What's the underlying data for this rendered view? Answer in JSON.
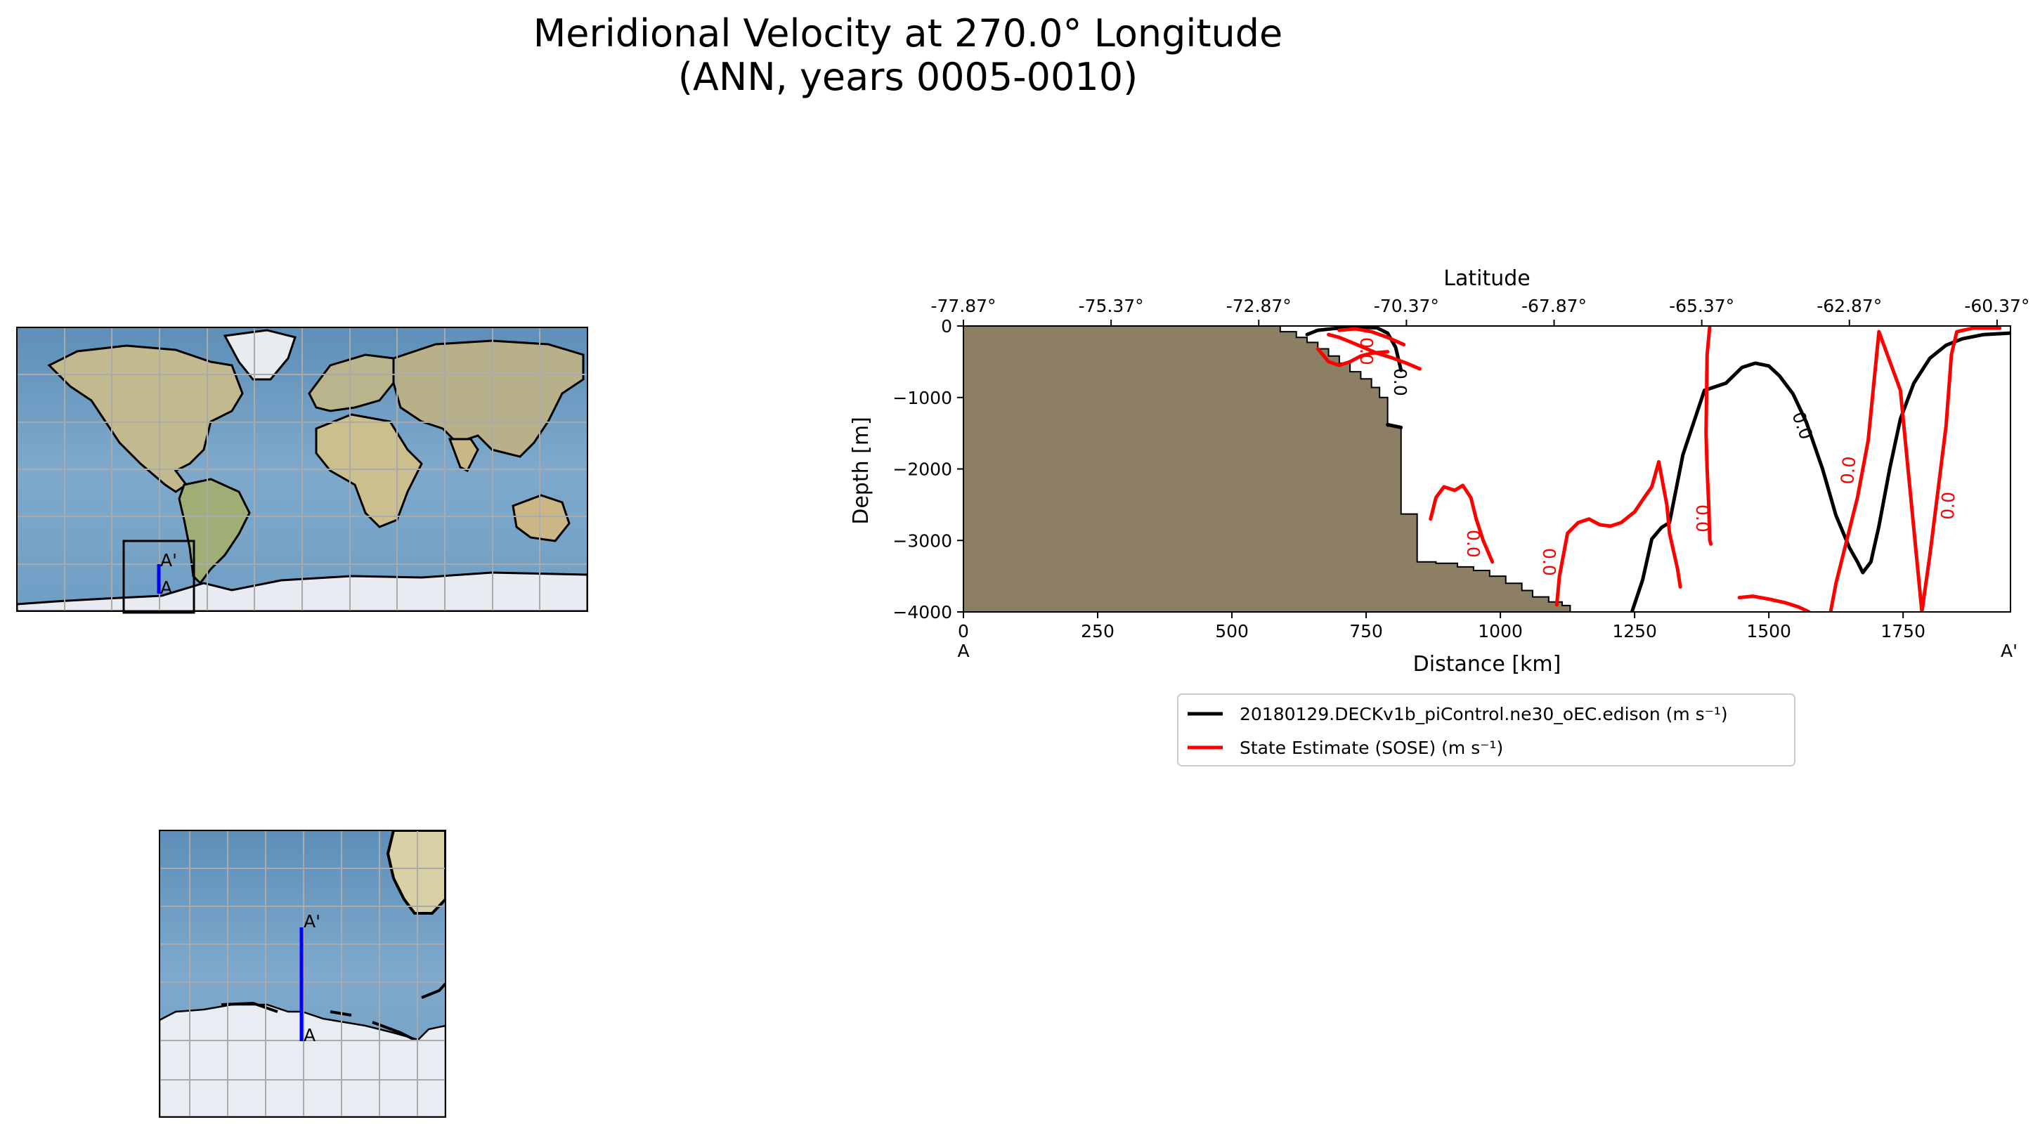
{
  "figure": {
    "title_line1": "Meridional Velocity at 270.0° Longitude",
    "title_line2": "(ANN, years 0005-0010)"
  },
  "chart_data": {
    "type": "line",
    "subtype": "transect contour plot",
    "title": "Meridional Velocity at 270.0° Longitude (ANN, years 0005-0010)",
    "xlabel": "Distance [km]",
    "ylabel": "Depth [m]",
    "top_xlabel": "Latitude",
    "xlim": [
      0,
      1950
    ],
    "ylim": [
      -4000,
      0
    ],
    "x_ticks": [
      0,
      250,
      500,
      750,
      1000,
      1250,
      1500,
      1750
    ],
    "x_tick_labels": [
      "0",
      "250",
      "500",
      "750",
      "1000",
      "1250",
      "1500",
      "1750"
    ],
    "y_ticks": [
      0,
      -1000,
      -2000,
      -3000,
      -4000
    ],
    "y_tick_labels": [
      "0",
      "−1000",
      "−2000",
      "−3000",
      "−4000"
    ],
    "top_ticks_km": [
      0,
      275,
      550,
      825,
      1100,
      1375,
      1650,
      1925
    ],
    "top_tick_labels": [
      "-77.87°",
      "-75.37°",
      "-72.87°",
      "-70.37°",
      "-67.87°",
      "-65.37°",
      "-62.87°",
      "-60.37°"
    ],
    "endpoint_labels": {
      "start": "A",
      "end": "A'"
    },
    "contour_labels": [
      "0.0",
      "0.0",
      "0.0",
      "0.0",
      "0.0",
      "0.0",
      "0.0"
    ],
    "legend_position": "below",
    "colors": {
      "model": "#000000",
      "obs": "#ff0000",
      "land": "#8c7f64"
    },
    "bathymetry": {
      "distance_km": [
        0,
        590,
        590,
        620,
        620,
        640,
        640,
        660,
        660,
        680,
        680,
        700,
        700,
        720,
        720,
        740,
        740,
        760,
        760,
        775,
        775,
        790,
        790,
        805,
        805,
        815,
        815,
        845,
        845,
        880,
        880,
        920,
        920,
        950,
        950,
        980,
        980,
        1010,
        1010,
        1040,
        1040,
        1060,
        1060,
        1090,
        1090,
        1115,
        1115,
        1130,
        1130
      ],
      "depth_m": [
        0,
        0,
        -80,
        -80,
        -160,
        -160,
        -230,
        -230,
        -320,
        -320,
        -420,
        -420,
        -520,
        -520,
        -640,
        -640,
        -740,
        -740,
        -860,
        -860,
        -1000,
        -1000,
        -1400,
        -1400,
        -1420,
        -1420,
        -2630,
        -2630,
        -3300,
        -3300,
        -3320,
        -3320,
        -3370,
        -3370,
        -3420,
        -3420,
        -3500,
        -3500,
        -3600,
        -3600,
        -3700,
        -3700,
        -3790,
        -3790,
        -3860,
        -3860,
        -3910,
        -3910,
        -4000
      ]
    },
    "series": [
      {
        "name": "20180129.DECKv1b_piControl.ne30_oEC.edison (m s⁻¹)",
        "color": "#000000",
        "contour_level": 0.0,
        "lines": [
          {
            "x": [
              1245,
              1265,
              1282,
              1300,
              1315,
              1340,
              1380,
              1420,
              1450,
              1475,
              1500,
              1520,
              1545,
              1570,
              1600,
              1625,
              1650,
              1665,
              1675,
              1690,
              1705,
              1725,
              1745,
              1770,
              1800,
              1830,
              1860,
              1900,
              1950
            ],
            "y": [
              -4000,
              -3550,
              -2980,
              -2820,
              -2750,
              -1800,
              -900,
              -800,
              -580,
              -520,
              -560,
              -700,
              -950,
              -1350,
              -2000,
              -2650,
              -3100,
              -3300,
              -3450,
              -3300,
              -2800,
              -2000,
              -1300,
              -800,
              -450,
              -270,
              -180,
              -120,
              -100
            ]
          },
          {
            "x": [
              640,
              660,
              685,
              700,
              720,
              745,
              770,
              790,
              805,
              815
            ],
            "y": [
              -120,
              -60,
              -40,
              -30,
              -25,
              -20,
              -25,
              -100,
              -300,
              -620
            ]
          },
          {
            "x": [
              790,
              815
            ],
            "y": [
              -1380,
              -1420
            ]
          }
        ]
      },
      {
        "name": "State Estimate (SOSE) (m s⁻¹)",
        "color": "#ff0000",
        "contour_level": 0.0,
        "lines": [
          {
            "x": [
              660,
              680,
              700,
              720,
              740,
              760,
              790
            ],
            "y": [
              -320,
              -500,
              -550,
              -500,
              -420,
              -380,
              -360
            ]
          },
          {
            "x": [
              680,
              700,
              720,
              745,
              770,
              800,
              825,
              850
            ],
            "y": [
              -120,
              -160,
              -220,
              -300,
              -380,
              -450,
              -520,
              -600
            ]
          },
          {
            "x": [
              700,
              730,
              760,
              790,
              820
            ],
            "y": [
              -60,
              -40,
              -80,
              -160,
              -260
            ]
          },
          {
            "x": [
              870,
              880,
              895,
              915,
              930,
              945,
              955,
              968,
              985
            ],
            "y": [
              -2700,
              -2400,
              -2250,
              -2300,
              -2230,
              -2400,
              -2700,
              -3000,
              -3300
            ]
          },
          {
            "x": [
              1105,
              1110,
              1125,
              1145,
              1165,
              1185,
              1205,
              1225,
              1250,
              1268,
              1282,
              1295,
              1310,
              1315,
              1330,
              1335
            ],
            "y": [
              -3900,
              -3500,
              -2900,
              -2750,
              -2700,
              -2780,
              -2800,
              -2750,
              -2600,
              -2400,
              -2250,
              -1900,
              -2500,
              -2900,
              -3400,
              -3650
            ]
          },
          {
            "x": [
              1390,
              1385,
              1383,
              1385,
              1388,
              1390,
              1392
            ],
            "y": [
              0,
              -400,
              -1500,
              -2000,
              -2500,
              -3000,
              -3050
            ]
          },
          {
            "x": [
              1445,
              1470,
              1500,
              1530,
              1555,
              1575
            ],
            "y": [
              -3800,
              -3780,
              -3820,
              -3870,
              -3930,
              -4000
            ]
          },
          {
            "x": [
              1930,
              1880,
              1850,
              1840,
              1835,
              1830,
              1820,
              1810,
              1800,
              1785,
              1745,
              1705,
              1685,
              1665,
              1645,
              1625,
              1615
            ],
            "y": [
              -30,
              -30,
              -80,
              -400,
              -900,
              -1400,
              -2000,
              -2600,
              -3200,
              -4000,
              -900,
              -80,
              -1600,
              -2400,
              -3000,
              -3600,
              -4000
            ]
          }
        ]
      }
    ]
  },
  "maps": {
    "transect_start_label": "A",
    "transect_end_label": "A'",
    "colors": {
      "transect": "#0000ff",
      "gridlines": "#aaaaaa"
    }
  }
}
